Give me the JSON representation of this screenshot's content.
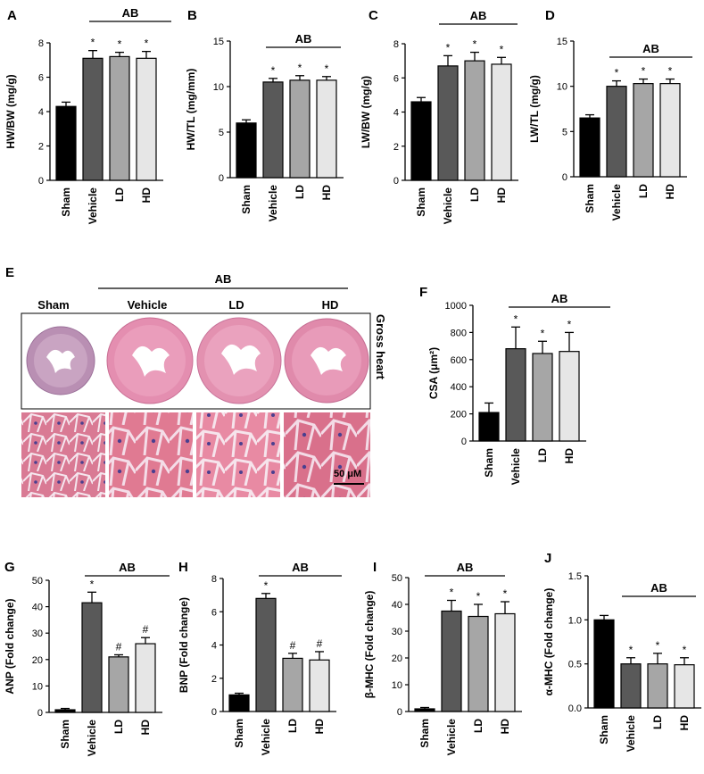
{
  "colors": {
    "Sham": "#000000",
    "Vehicle": "#595959",
    "LD": "#a6a6a6",
    "HD": "#e6e6e6"
  },
  "chart_data": [
    {
      "panel": "A",
      "type": "bar",
      "categories": [
        "Sham",
        "Vehicle",
        "LD",
        "HD"
      ],
      "values": [
        4.3,
        7.1,
        7.2,
        7.1
      ],
      "errors": [
        0.25,
        0.45,
        0.25,
        0.4
      ],
      "annotations": [
        "",
        "*",
        "*",
        "*"
      ],
      "group_label": "AB",
      "ylabel": "HW/BW (mg/g)",
      "ylim": [
        0,
        8
      ],
      "yticks": [
        "0",
        "2",
        "4",
        "6",
        "8"
      ]
    },
    {
      "panel": "B",
      "type": "bar",
      "categories": [
        "Sham",
        "Vehicle",
        "LD",
        "HD"
      ],
      "values": [
        6.0,
        10.5,
        10.7,
        10.7
      ],
      "errors": [
        0.35,
        0.4,
        0.5,
        0.4
      ],
      "annotations": [
        "",
        "*",
        "*",
        "*"
      ],
      "group_label": "AB",
      "ylabel": "HW/TL (mg/mm)",
      "ylim": [
        0,
        15
      ],
      "yticks": [
        "0",
        "5",
        "10",
        "15"
      ]
    },
    {
      "panel": "C",
      "type": "bar",
      "categories": [
        "Sham",
        "Vehicle",
        "LD",
        "HD"
      ],
      "values": [
        4.6,
        6.7,
        7.0,
        6.8
      ],
      "errors": [
        0.25,
        0.6,
        0.5,
        0.4
      ],
      "annotations": [
        "",
        "*",
        "*",
        "*"
      ],
      "group_label": "AB",
      "ylabel": "LW/BW (mg/g)",
      "ylim": [
        0,
        8
      ],
      "yticks": [
        "0",
        "2",
        "4",
        "6",
        "8"
      ]
    },
    {
      "panel": "D",
      "type": "bar",
      "categories": [
        "Sham",
        "Vehicle",
        "LD",
        "HD"
      ],
      "values": [
        6.5,
        10.0,
        10.3,
        10.3
      ],
      "errors": [
        0.35,
        0.6,
        0.5,
        0.5
      ],
      "annotations": [
        "",
        "*",
        "*",
        "*"
      ],
      "group_label": "AB",
      "ylabel": "LW/TL (mg/g)",
      "ylim": [
        0,
        15
      ],
      "yticks": [
        "0",
        "5",
        "10",
        "15"
      ]
    },
    {
      "panel": "F",
      "type": "bar",
      "categories": [
        "Sham",
        "Vehicle",
        "LD",
        "HD"
      ],
      "values": [
        210,
        680,
        645,
        660
      ],
      "errors": [
        70,
        160,
        90,
        140
      ],
      "annotations": [
        "",
        "*",
        "*",
        "*"
      ],
      "group_label": "AB",
      "ylabel": "CSA (μm²)",
      "ylim": [
        0,
        1000
      ],
      "yticks": [
        "0",
        "200",
        "400",
        "600",
        "800",
        "1000"
      ]
    },
    {
      "panel": "G",
      "type": "bar",
      "categories": [
        "Sham",
        "Vehicle",
        "LD",
        "HD"
      ],
      "values": [
        1,
        41.5,
        21,
        26
      ],
      "errors": [
        0.5,
        4,
        0.8,
        2.3
      ],
      "annotations": [
        "",
        "*",
        "#",
        "#"
      ],
      "group_label": "AB",
      "ylabel": "ANP (Fold change)",
      "ylim": [
        0,
        50
      ],
      "yticks": [
        "0",
        "10",
        "20",
        "30",
        "40",
        "50"
      ]
    },
    {
      "panel": "H",
      "type": "bar",
      "categories": [
        "Sham",
        "Vehicle",
        "LD",
        "HD"
      ],
      "values": [
        1.0,
        6.8,
        3.2,
        3.1
      ],
      "errors": [
        0.1,
        0.3,
        0.3,
        0.5
      ],
      "annotations": [
        "",
        "*",
        "#",
        "#"
      ],
      "group_label": "AB",
      "ylabel": "BNP (Fold change)",
      "ylim": [
        0,
        8
      ],
      "yticks": [
        "0",
        "2",
        "4",
        "6",
        "8"
      ]
    },
    {
      "panel": "I",
      "type": "bar",
      "categories": [
        "Sham",
        "Vehicle",
        "LD",
        "HD"
      ],
      "values": [
        1,
        37.5,
        35.5,
        36.5
      ],
      "errors": [
        0.5,
        4,
        4.5,
        4.5
      ],
      "annotations": [
        "",
        "*",
        "*",
        "*"
      ],
      "group_label": "AB",
      "ylabel": "β-MHC (Fold change)",
      "ylim": [
        0,
        50
      ],
      "yticks": [
        "0",
        "10",
        "20",
        "30",
        "40",
        "50"
      ]
    },
    {
      "panel": "J",
      "type": "bar",
      "categories": [
        "Sham",
        "Vehicle",
        "LD",
        "HD"
      ],
      "values": [
        1.0,
        0.5,
        0.5,
        0.49
      ],
      "errors": [
        0.05,
        0.07,
        0.12,
        0.08
      ],
      "annotations": [
        "",
        "*",
        "*",
        "*"
      ],
      "group_label": "AB",
      "ylabel": "α-MHC (Fold change)",
      "ylim": [
        0,
        1.5
      ],
      "yticks": [
        "0.0",
        "0.5",
        "1.0",
        "1.5"
      ]
    }
  ],
  "histology": {
    "panel": "E",
    "group_label": "AB",
    "columns": [
      "Sham",
      "Vehicle",
      "LD",
      "HD"
    ],
    "row_label": "Gross heart",
    "scale_bar": "50 μM"
  }
}
